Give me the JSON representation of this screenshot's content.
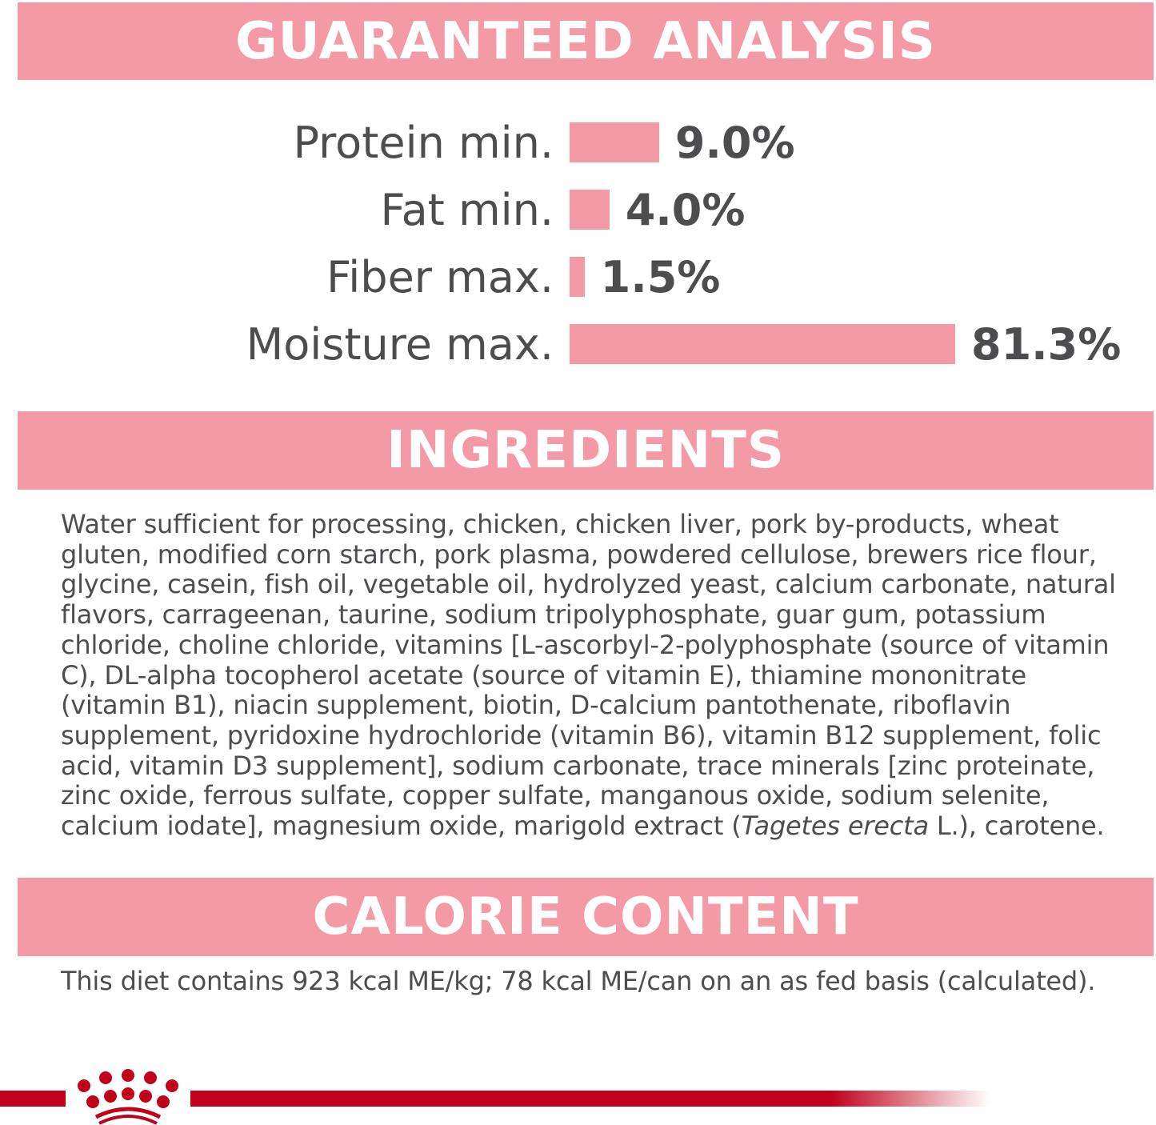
{
  "sections": {
    "analysis_title": "GUARANTEED ANALYSIS",
    "ingredients_title": "INGREDIENTS",
    "calorie_title": "CALORIE CONTENT"
  },
  "analysis": [
    {
      "label": "Protein min.",
      "value": 9.0,
      "display": "9.0%"
    },
    {
      "label": "Fat min.",
      "value": 4.0,
      "display": "4.0%"
    },
    {
      "label": "Fiber max.",
      "value": 1.5,
      "display": "1.5%"
    },
    {
      "label": "Moisture max.",
      "value": 81.3,
      "display": "81.3%"
    }
  ],
  "ingredients": {
    "text_before": "Water sufficient for processing, chicken, chicken liver, pork by-products, wheat gluten, modified corn starch, pork plasma, powdered cellulose, brewers rice flour, glycine, casein, fish oil, vegetable oil, hydrolyzed yeast, calcium carbonate, natural flavors, carrageenan, taurine, sodium tripolyphosphate, guar gum, potassium chloride, choline chloride, vitamins [L-ascorbyl-2-polyphosphate (source of vitamin C), DL-alpha tocopherol acetate (source of vitamin E), thiamine mononitrate (vitamin B1), niacin supplement, biotin, D-calcium pantothenate, riboflavin supplement, pyridoxine hydrochloride (vitamin B6), vitamin B12 supplement, folic acid, vitamin D3 supplement], sodium carbonate, trace minerals [zinc proteinate, zinc oxide, ferrous sulfate, copper sulfate, manganous oxide, sodium selenite, calcium iodate], magnesium oxide, marigold extract (",
    "text_italic": "Tagetes erecta",
    "text_after": " L.), carotene."
  },
  "calorie": "This diet contains 923 kcal ME/kg; 78 kcal ME/can on an as fed basis (calculated).",
  "colors": {
    "band": "#f49aa7",
    "brand_red": "#c1001a",
    "text": "#4d4d4f"
  },
  "logo": {
    "icon": "crown-icon"
  }
}
